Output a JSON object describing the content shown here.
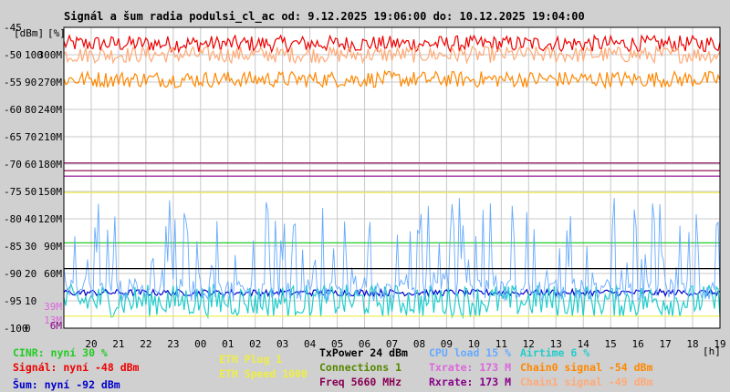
{
  "chart_data": {
    "type": "line",
    "title": "Signál a šum radia podulsi_cl_ac od: 9.12.2025 19:06:00 do: 10.12.2025 19:04:00",
    "y_unit_labels": {
      "dbm": "[dBm]",
      "percent": "[%]"
    },
    "x_unit_label": "[h]",
    "ylim": [
      -100,
      -45
    ],
    "percent_lim": [
      0,
      100
    ],
    "x_range_hours": [
      19,
      43
    ],
    "x_ticks": [
      "20",
      "21",
      "22",
      "23",
      "00",
      "01",
      "02",
      "03",
      "04",
      "05",
      "06",
      "07",
      "08",
      "09",
      "10",
      "11",
      "12",
      "13",
      "14",
      "15",
      "16",
      "17",
      "18",
      "19"
    ],
    "y_ticks_dbm": [
      "-45",
      "-50",
      "-55",
      "-60",
      "-65",
      "-70",
      "-75",
      "-80",
      "-85",
      "-90",
      "-95",
      "-100"
    ],
    "y_ticks_percent": [
      "100",
      "90",
      "80",
      "70",
      "60",
      "50",
      "40",
      "30",
      "20",
      "10",
      "0"
    ],
    "y_ticks_rate": [
      "300M",
      "270M",
      "240M",
      "210M",
      "180M",
      "150M",
      "120M",
      "90M",
      "60M",
      "39M",
      "13M",
      "6M"
    ],
    "rate_tick_colors": [
      "#000000",
      "#000000",
      "#000000",
      "#000000",
      "#000000",
      "#000000",
      "#000000",
      "#000000",
      "#000000",
      "#dd66dd",
      "#dd66dd",
      "#880088"
    ],
    "series": [
      {
        "name": "Signál",
        "type": "noisy",
        "color": "#ee0000",
        "base": -48,
        "noise": 1.5
      },
      {
        "name": "Chain1 signal",
        "type": "noisy",
        "color": "#ffaa77",
        "base": -50,
        "noise": 1.5
      },
      {
        "name": "Chain0 signal",
        "type": "noisy",
        "color": "#ff8800",
        "base": -54.5,
        "noise": 1.5
      },
      {
        "name": "Rxrate",
        "type": "flat",
        "color": "#880044",
        "value": -71.2
      },
      {
        "name": "Txrate",
        "type": "flat",
        "color": "#880088",
        "value": -72.2
      },
      {
        "name": "Freq",
        "type": "flat",
        "color": "#880055",
        "value": -69.8
      },
      {
        "name": "ETH Speed",
        "type": "flat",
        "color": "#eeee44",
        "value": -75.2
      },
      {
        "name": "CINR",
        "type": "flat",
        "color": "#22cc22",
        "value": -84.4
      },
      {
        "name": "Šum",
        "type": "noisy",
        "color": "#0000cc",
        "base": -93.5,
        "noise": 0.6
      },
      {
        "name": "Airtime",
        "type": "noisy",
        "color": "#22cccc",
        "base": -95,
        "noise": 3
      },
      {
        "name": "CPU load",
        "type": "spiky",
        "color": "#66aaff",
        "base": -93,
        "noise": 14
      },
      {
        "name": "TxPower",
        "type": "flat",
        "color": "#000000",
        "value": -89.1
      },
      {
        "name": "ETH Plug",
        "type": "flat",
        "color": "#eeee44",
        "value": -97.8
      }
    ],
    "legend": [
      {
        "text": "CINR: nyní 30 %",
        "color": "#22cc22"
      },
      {
        "text": "Signál: nyní -48 dBm",
        "color": "#ee0000"
      },
      {
        "text": "Šum: nyní -92 dBm",
        "color": "#0000cc"
      },
      {
        "text": "ETH Plug 1",
        "color": "#eeee44"
      },
      {
        "text": "ETH Speed 1000",
        "color": "#eeee44"
      },
      {
        "text": "TxPower 24 dBm",
        "color": "#000000"
      },
      {
        "text": "Connections 1",
        "color": "#558800"
      },
      {
        "text": "Freq 5660 MHz",
        "color": "#880055"
      },
      {
        "text": "CPU load 15 %",
        "color": "#66aaff"
      },
      {
        "text": "Txrate: 173 M",
        "color": "#dd66dd"
      },
      {
        "text": "Rxrate: 173 M",
        "color": "#880088"
      },
      {
        "text": "Airtime 6 %",
        "color": "#22cccc"
      },
      {
        "text": "Chain0 signal -54 dBm",
        "color": "#ff8800"
      },
      {
        "text": "Chain1 signal -49 dBm",
        "color": "#ffaa77"
      }
    ]
  }
}
